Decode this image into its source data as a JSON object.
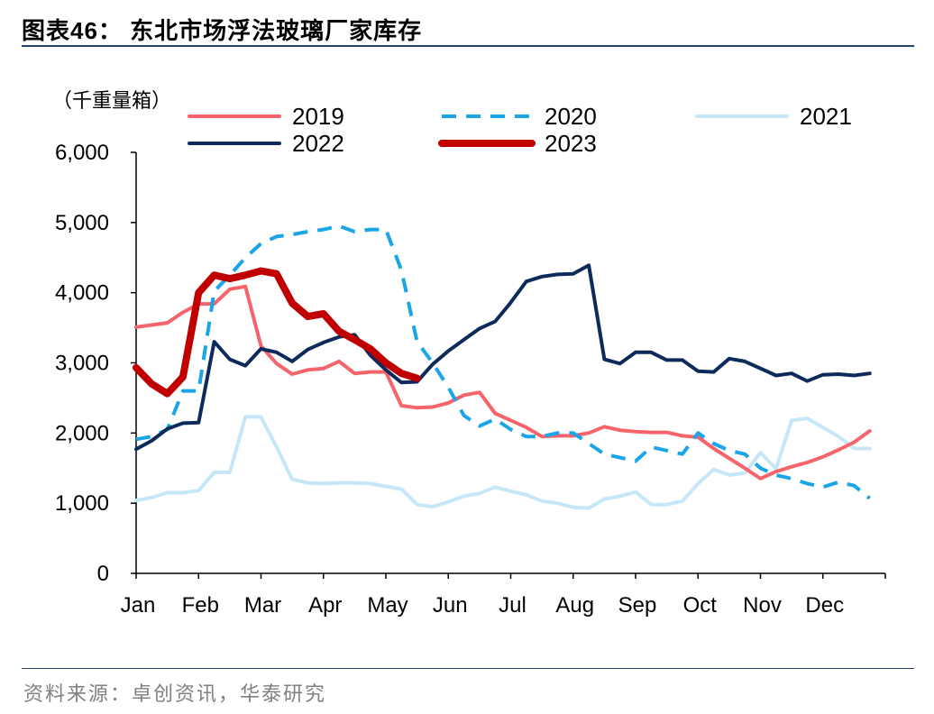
{
  "header": {
    "figure_title": "图表46：  东北市场浮法玻璃厂家库存"
  },
  "footer": {
    "source": "资料来源：卓创资讯，华泰研究"
  },
  "chart_data": {
    "type": "line",
    "unit_label": "（千重量箱）",
    "xlabel": "",
    "ylabel": "",
    "ylim": [
      0,
      6000
    ],
    "yticks": [
      0,
      1000,
      2000,
      3000,
      4000,
      5000,
      6000
    ],
    "ytick_labels": [
      "0",
      "1,000",
      "2,000",
      "3,000",
      "4,000",
      "5,000",
      "6,000"
    ],
    "xlim": [
      0,
      12
    ],
    "x_categories": [
      "Jan",
      "Feb",
      "Mar",
      "Apr",
      "May",
      "Jun",
      "Jul",
      "Aug",
      "Sep",
      "Oct",
      "Nov",
      "Dec"
    ],
    "grid": false,
    "legend_position": "top",
    "series": [
      {
        "name": "2019",
        "color": "#f4646a",
        "dash": "solid",
        "width": 4,
        "x": [
          0,
          0.25,
          0.5,
          0.75,
          1.0,
          1.25,
          1.5,
          1.75,
          2.0,
          2.25,
          2.5,
          2.75,
          3.0,
          3.25,
          3.5,
          3.75,
          4.0,
          4.25,
          4.5,
          4.75,
          5.0,
          5.25,
          5.5,
          5.75,
          6.0,
          6.25,
          6.5,
          6.75,
          7.0,
          7.25,
          7.5,
          7.75,
          8.0,
          8.25,
          8.5,
          8.75,
          9.0,
          9.25,
          9.5,
          9.75,
          10.0,
          10.25,
          10.5,
          10.75,
          11.0,
          11.25,
          11.5,
          11.75
        ],
        "y": [
          3510,
          3540,
          3570,
          3720,
          3840,
          3840,
          4050,
          4090,
          3240,
          2990,
          2840,
          2900,
          2920,
          3020,
          2850,
          2870,
          2870,
          2390,
          2360,
          2370,
          2430,
          2540,
          2580,
          2280,
          2180,
          2080,
          1950,
          1960,
          1960,
          2000,
          2090,
          2040,
          2020,
          2010,
          2010,
          1960,
          1940,
          1780,
          1640,
          1500,
          1350,
          1450,
          1520,
          1580,
          1660,
          1760,
          1870,
          2030
        ]
      },
      {
        "name": "2020",
        "color": "#1aa5e6",
        "dash": "dashed",
        "width": 4,
        "x": [
          0,
          0.25,
          0.5,
          0.75,
          1.0,
          1.25,
          1.5,
          1.75,
          2.0,
          2.25,
          2.5,
          2.75,
          3.0,
          3.25,
          3.5,
          3.75,
          4.0,
          4.25,
          4.5,
          4.75,
          5.0,
          5.25,
          5.5,
          5.75,
          6.0,
          6.25,
          6.5,
          6.75,
          7.0,
          7.25,
          7.5,
          7.75,
          8.0,
          8.25,
          8.5,
          8.75,
          9.0,
          9.25,
          9.5,
          9.75,
          10.0,
          10.25,
          10.5,
          10.75,
          11.0,
          11.25,
          11.5,
          11.75
        ],
        "y": [
          1910,
          1950,
          2050,
          2600,
          2600,
          4020,
          4250,
          4500,
          4700,
          4800,
          4830,
          4870,
          4900,
          4950,
          4870,
          4900,
          4900,
          4320,
          3300,
          3000,
          2650,
          2250,
          2100,
          2200,
          2050,
          1950,
          1950,
          2000,
          2000,
          1850,
          1700,
          1650,
          1600,
          1800,
          1750,
          1700,
          2000,
          1850,
          1750,
          1700,
          1500,
          1400,
          1350,
          1280,
          1230,
          1300,
          1250,
          1070
        ]
      },
      {
        "name": "2021",
        "color": "#c6e7f7",
        "dash": "solid",
        "width": 4,
        "x": [
          0,
          0.25,
          0.5,
          0.75,
          1.0,
          1.25,
          1.5,
          1.75,
          2.0,
          2.25,
          2.5,
          2.75,
          3.0,
          3.25,
          3.5,
          3.75,
          4.0,
          4.25,
          4.5,
          4.75,
          5.0,
          5.25,
          5.5,
          5.75,
          6.0,
          6.25,
          6.5,
          6.75,
          7.0,
          7.25,
          7.5,
          7.75,
          8.0,
          8.25,
          8.5,
          8.75,
          9.0,
          9.25,
          9.5,
          9.75,
          10.0,
          10.25,
          10.5,
          10.75,
          11.0,
          11.25,
          11.5,
          11.75
        ],
        "y": [
          1040,
          1080,
          1150,
          1150,
          1180,
          1440,
          1440,
          2230,
          2230,
          1800,
          1340,
          1290,
          1280,
          1290,
          1290,
          1280,
          1240,
          1200,
          980,
          950,
          1020,
          1100,
          1140,
          1230,
          1170,
          1120,
          1030,
          1000,
          940,
          930,
          1060,
          1100,
          1160,
          980,
          980,
          1030,
          1280,
          1480,
          1400,
          1430,
          1720,
          1490,
          2180,
          2210,
          2080,
          1950,
          1780,
          1780
        ]
      },
      {
        "name": "2022",
        "color": "#0d2b5a",
        "dash": "solid",
        "width": 4,
        "x": [
          0,
          0.25,
          0.5,
          0.75,
          1.0,
          1.25,
          1.5,
          1.75,
          2.0,
          2.25,
          2.5,
          2.75,
          3.0,
          3.25,
          3.5,
          3.75,
          4.0,
          4.25,
          4.5,
          4.75,
          5.0,
          5.25,
          5.5,
          5.75,
          6.0,
          6.25,
          6.5,
          6.75,
          7.0,
          7.25,
          7.5,
          7.75,
          8.0,
          8.25,
          8.5,
          8.75,
          9.0,
          9.25,
          9.5,
          9.75,
          10.0,
          10.25,
          10.5,
          10.75,
          11.0,
          11.25,
          11.5,
          11.75
        ],
        "y": [
          1770,
          1890,
          2060,
          2140,
          2150,
          3300,
          3050,
          2960,
          3200,
          3150,
          3020,
          3190,
          3290,
          3370,
          3400,
          3110,
          2900,
          2720,
          2730,
          2980,
          3170,
          3330,
          3490,
          3590,
          3860,
          4160,
          4230,
          4260,
          4270,
          4390,
          3050,
          2990,
          3150,
          3150,
          3040,
          3040,
          2880,
          2870,
          3060,
          3020,
          2920,
          2820,
          2850,
          2740,
          2830,
          2840,
          2820,
          2850
        ]
      },
      {
        "name": "2023",
        "color": "#c00000",
        "dash": "solid",
        "width": 8,
        "x": [
          0,
          0.25,
          0.5,
          0.75,
          1.0,
          1.25,
          1.5,
          1.75,
          2.0,
          2.25,
          2.5,
          2.75,
          3.0,
          3.25,
          3.5,
          3.75,
          4.0,
          4.25,
          4.5
        ],
        "y": [
          2930,
          2700,
          2560,
          2800,
          4000,
          4250,
          4200,
          4250,
          4310,
          4270,
          3850,
          3660,
          3700,
          3450,
          3330,
          3200,
          3000,
          2850,
          2780
        ]
      }
    ]
  }
}
